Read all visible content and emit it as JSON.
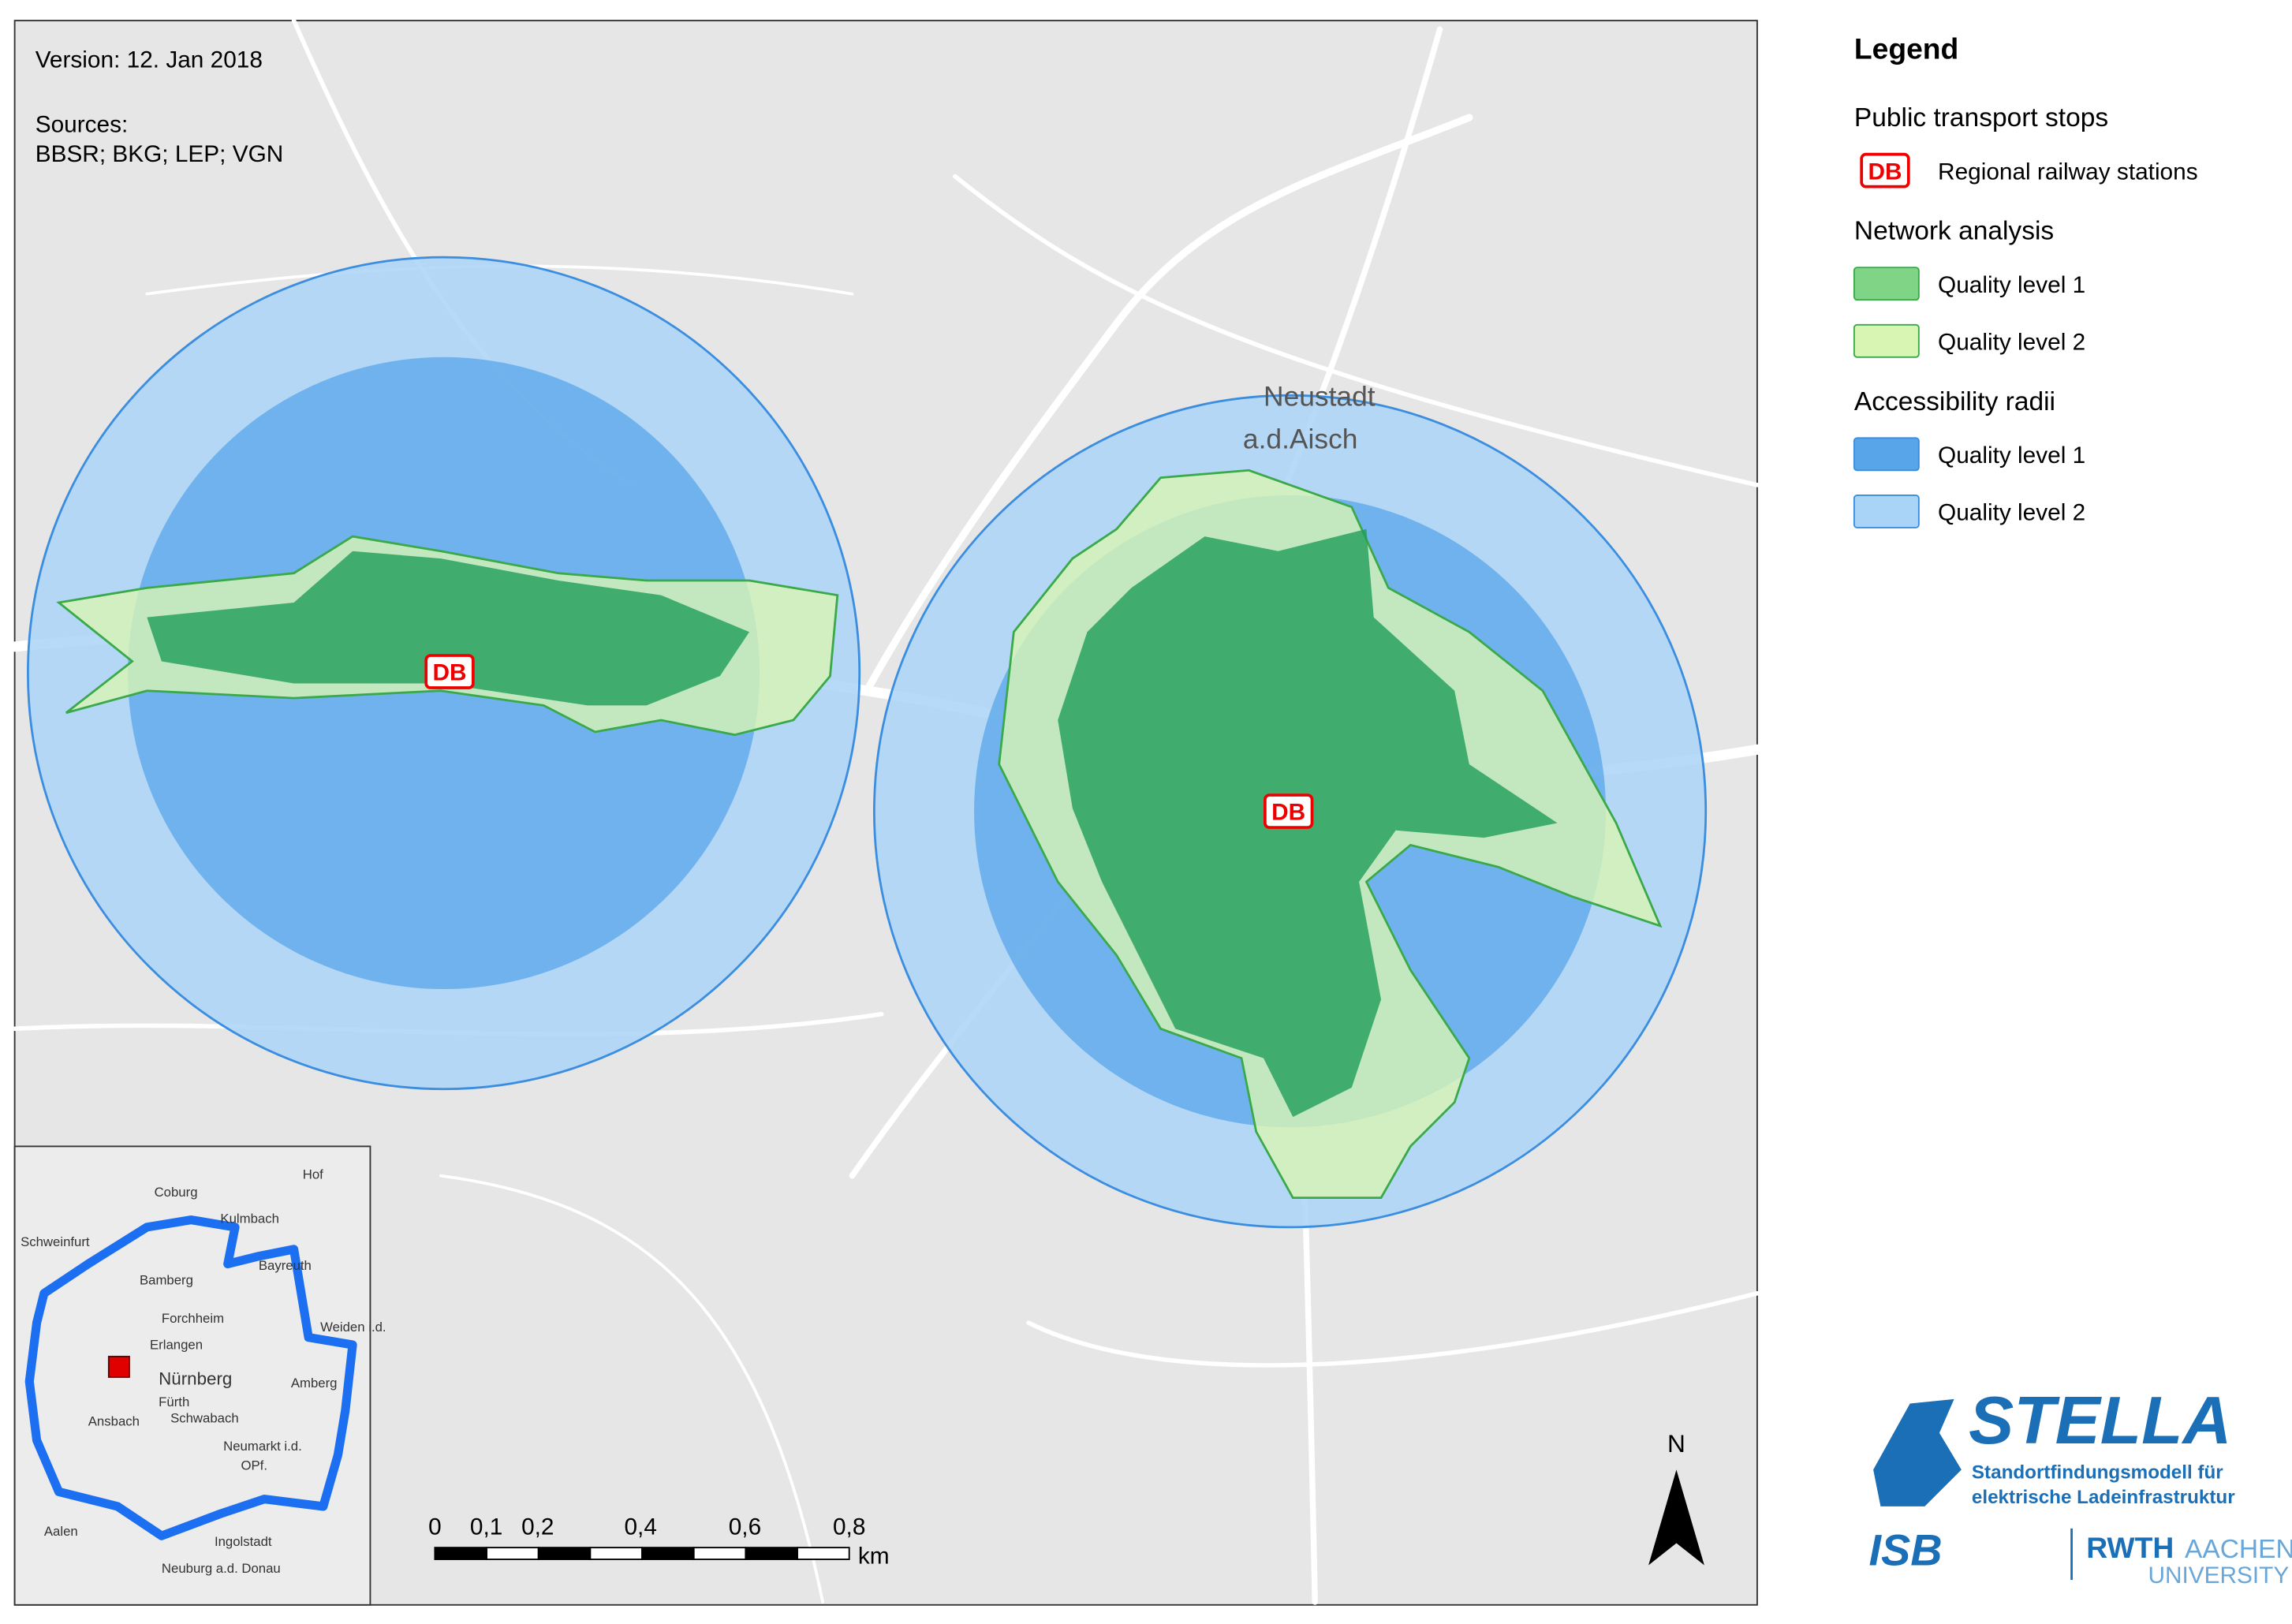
{
  "map": {
    "version": "Version: 12. Jan 2018",
    "sources_title": "Sources:",
    "sources": "BBSR; BKG; LEP; VGN",
    "place_name": "Neustadt",
    "place_suffix": "a.d.Aisch",
    "stations": [
      {
        "label": "DB"
      },
      {
        "label": "DB"
      }
    ]
  },
  "legend": {
    "title": "Legend",
    "groups": [
      {
        "title": "Public transport stops",
        "items": [
          {
            "icon": "DB",
            "label": "Regional railway stations"
          }
        ]
      },
      {
        "title": "Network analysis",
        "items": [
          {
            "label": "Quality level 1",
            "color": "#7fd486"
          },
          {
            "label": "Quality level 2",
            "color": "#d8f5b4"
          }
        ]
      },
      {
        "title": "Accessibility radii",
        "items": [
          {
            "label": "Quality level 1",
            "color": "#58a5ea"
          },
          {
            "label": "Quality level 2",
            "color": "#a9d4f7"
          }
        ]
      }
    ]
  },
  "scale_bar": {
    "labels": [
      "0",
      "0,1",
      "0,2",
      "0,4",
      "0,6",
      "0,8"
    ],
    "unit": "km"
  },
  "north": "N",
  "inset": {
    "labels": [
      "Coburg",
      "Hof",
      "Kulmbach",
      "Schweinfurt",
      "Bayreuth",
      "Bamberg",
      "Forchheim",
      "Weiden i.d.",
      "Erlangen",
      "Nürnberg",
      "Fürth",
      "Amberg",
      "Schwabach",
      "Ansbach",
      "Neumarkt i.d.",
      "OPf.",
      "Ingolstadt",
      "Aalen",
      "Neuburg a.d. Donau"
    ]
  },
  "logo": {
    "name": "STELLA",
    "line1": "Standortfindungsmodell für",
    "line2": "elektrische Ladeinfrastruktur",
    "isb": "ISB",
    "rwth": "RWTH",
    "aachen": "AACHEN",
    "university": "UNIVERSITY"
  }
}
